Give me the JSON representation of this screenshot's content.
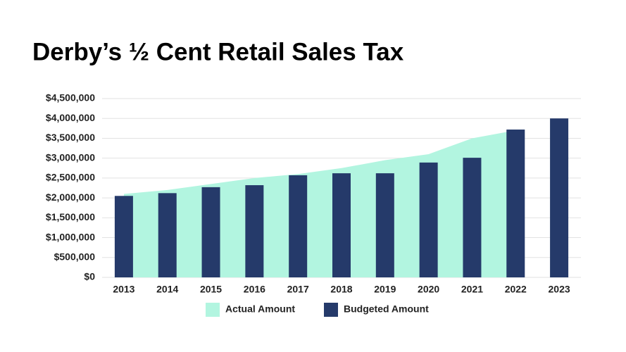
{
  "chart_data": {
    "type": "area-bar",
    "title": "Derby’s ½ Cent Retail Sales Tax",
    "categories": [
      "2013",
      "2014",
      "2015",
      "2016",
      "2017",
      "2018",
      "2019",
      "2020",
      "2021",
      "2022",
      "2023"
    ],
    "series": [
      {
        "name": "Actual Amount",
        "color": "#b2f5e0",
        "kind": "area",
        "values": [
          2100000,
          2200000,
          2350000,
          2500000,
          2600000,
          2750000,
          2950000,
          3100000,
          3500000,
          3700000,
          null
        ]
      },
      {
        "name": "Budgeted Amount",
        "color": "#253a6a",
        "kind": "bar",
        "values": [
          2050000,
          2120000,
          2270000,
          2320000,
          2570000,
          2620000,
          2620000,
          2890000,
          3010000,
          3720000,
          4000000
        ]
      }
    ],
    "ylim": [
      0,
      4500000
    ],
    "yticks": [
      {
        "value": 0,
        "label": "$0"
      },
      {
        "value": 500000,
        "label": "$500,000"
      },
      {
        "value": 1000000,
        "label": "$1,000,000"
      },
      {
        "value": 1500000,
        "label": "$1,500,000"
      },
      {
        "value": 2000000,
        "label": "$2,000,000"
      },
      {
        "value": 2500000,
        "label": "$2,500,000"
      },
      {
        "value": 3000000,
        "label": "$3,000,000"
      },
      {
        "value": 3500000,
        "label": "$3,500,000"
      },
      {
        "value": 4000000,
        "label": "$4,000,000"
      },
      {
        "value": 4500000,
        "label": "$4,500,000"
      }
    ],
    "grid": true
  }
}
